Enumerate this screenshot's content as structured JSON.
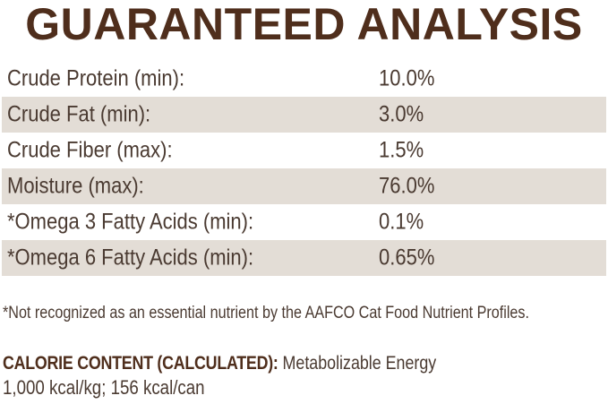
{
  "title": "GUARANTEED ANALYSIS",
  "colors": {
    "title_brown": "#4f2e1c",
    "body_text": "#4a3a31",
    "stripe_beige": "#e3ddd6",
    "background": "#ffffff"
  },
  "analysis_table": {
    "rows": [
      {
        "label": "Crude Protein (min):",
        "value": "10.0%"
      },
      {
        "label": "Crude Fat (min):",
        "value": "3.0%"
      },
      {
        "label": "Crude Fiber (max):",
        "value": "1.5%"
      },
      {
        "label": "Moisture (max):",
        "value": "76.0%"
      },
      {
        "label": "*Omega 3 Fatty Acids (min):",
        "value": "0.1%"
      },
      {
        "label": "*Omega 6 Fatty Acids (min):",
        "value": "0.65%"
      }
    ]
  },
  "footnote": "*Not recognized as an essential nutrient by the AAFCO Cat Food Nutrient Profiles.",
  "calorie_content": {
    "heading": "CALORIE CONTENT (CALCULATED):",
    "description": " Metabolizable Energy",
    "values": "1,000 kcal/kg; 156 kcal/can"
  }
}
